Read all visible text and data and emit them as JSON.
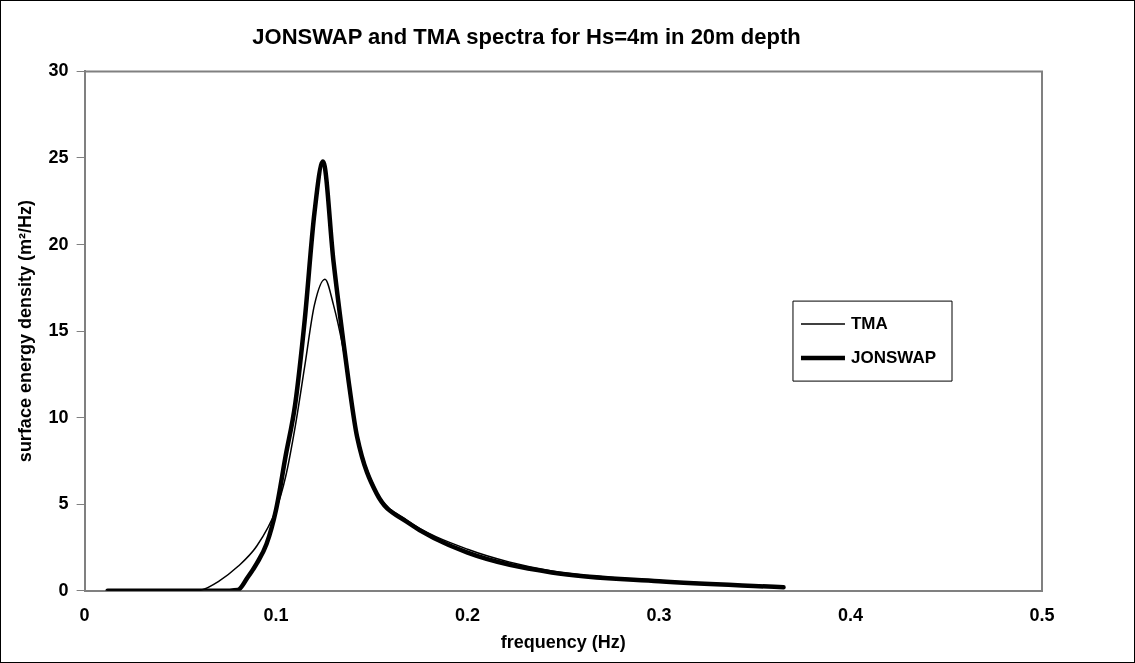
{
  "chart_data": {
    "type": "line",
    "title": "JONSWAP and TMA spectra for Hs=4m in 20m depth",
    "xlabel": "frequency (Hz)",
    "ylabel": "surface energy density (m²/Hz)",
    "xlim": [
      0,
      0.5
    ],
    "xticks": [
      0,
      0.1,
      0.2,
      0.3,
      0.4,
      0.5
    ],
    "ylim": [
      0,
      30
    ],
    "yticks": [
      0,
      5,
      10,
      15,
      20,
      25,
      30
    ],
    "grid": false,
    "legend": "right",
    "marker": "none",
    "line_style": "solid",
    "series": [
      {
        "name": "TMA",
        "color": "#000000",
        "x": [
          0.012,
          0.04,
          0.055,
          0.061,
          0.07,
          0.08,
          0.09,
          0.1,
          0.105,
          0.11,
          0.115,
          0.12,
          0.1255,
          0.13,
          0.135,
          0.138,
          0.1423,
          0.1526,
          0.168,
          0.2,
          0.244,
          0.3,
          0.365
        ],
        "values": [
          0,
          0,
          0,
          0.05,
          0.55,
          1.4,
          2.6,
          4.7,
          6.6,
          9.5,
          13,
          16.5,
          18,
          16.5,
          14,
          12,
          9,
          5.7,
          4.1,
          2.4,
          1.15,
          0.6,
          0.25
        ]
      },
      {
        "name": "JONSWAP",
        "color": "#000000",
        "x": [
          0.012,
          0.04,
          0.07,
          0.08,
          0.085,
          0.09,
          0.095,
          0.1,
          0.105,
          0.11,
          0.115,
          0.12,
          0.1245,
          0.13,
          0.135,
          0.138,
          0.1423,
          0.1526,
          0.168,
          0.2,
          0.244,
          0.3,
          0.365
        ],
        "values": [
          0,
          0,
          0,
          0.05,
          0.75,
          1.6,
          2.7,
          4.7,
          7.8,
          10.8,
          15.7,
          21.8,
          24.8,
          19,
          14.5,
          12,
          8.9,
          5.6,
          4,
          2.2,
          1.06,
          0.55,
          0.2
        ]
      }
    ]
  }
}
